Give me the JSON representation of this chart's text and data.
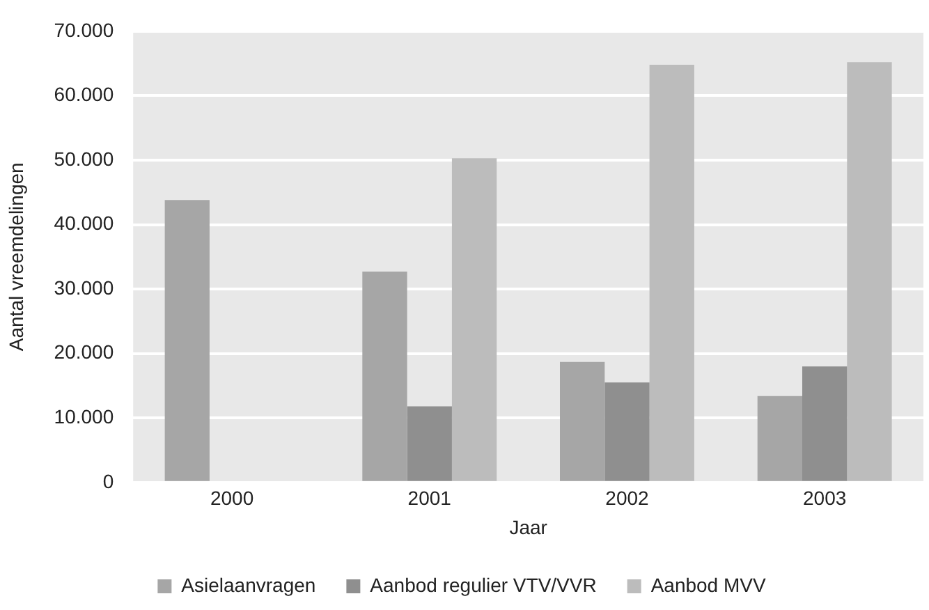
{
  "chart_data": {
    "type": "bar",
    "xlabel": "Jaar",
    "ylabel": "Aantal vreemdelingen",
    "categories": [
      "2000",
      "2001",
      "2002",
      "2003"
    ],
    "series": [
      {
        "name": "Asielaanvragen",
        "color": "#a6a6a6",
        "values": [
          43800,
          32700,
          18700,
          13400
        ]
      },
      {
        "name": "Aanbod regulier VTV/VVR",
        "color": "#8f8f8f",
        "values": [
          null,
          11800,
          15500,
          18000
        ]
      },
      {
        "name": "Aanbod MVV",
        "color": "#bcbcbc",
        "values": [
          null,
          50300,
          64800,
          65200
        ]
      }
    ],
    "ylim": [
      0,
      70000
    ],
    "yticks": [
      {
        "value": 0,
        "label": "0"
      },
      {
        "value": 10000,
        "label": "10.000"
      },
      {
        "value": 20000,
        "label": "20.000"
      },
      {
        "value": 30000,
        "label": "30.000"
      },
      {
        "value": 40000,
        "label": "40.000"
      },
      {
        "value": 50000,
        "label": "50.000"
      },
      {
        "value": 60000,
        "label": "60.000"
      },
      {
        "value": 70000,
        "label": "70.000"
      }
    ],
    "grid": "y",
    "legend": "bottom"
  }
}
